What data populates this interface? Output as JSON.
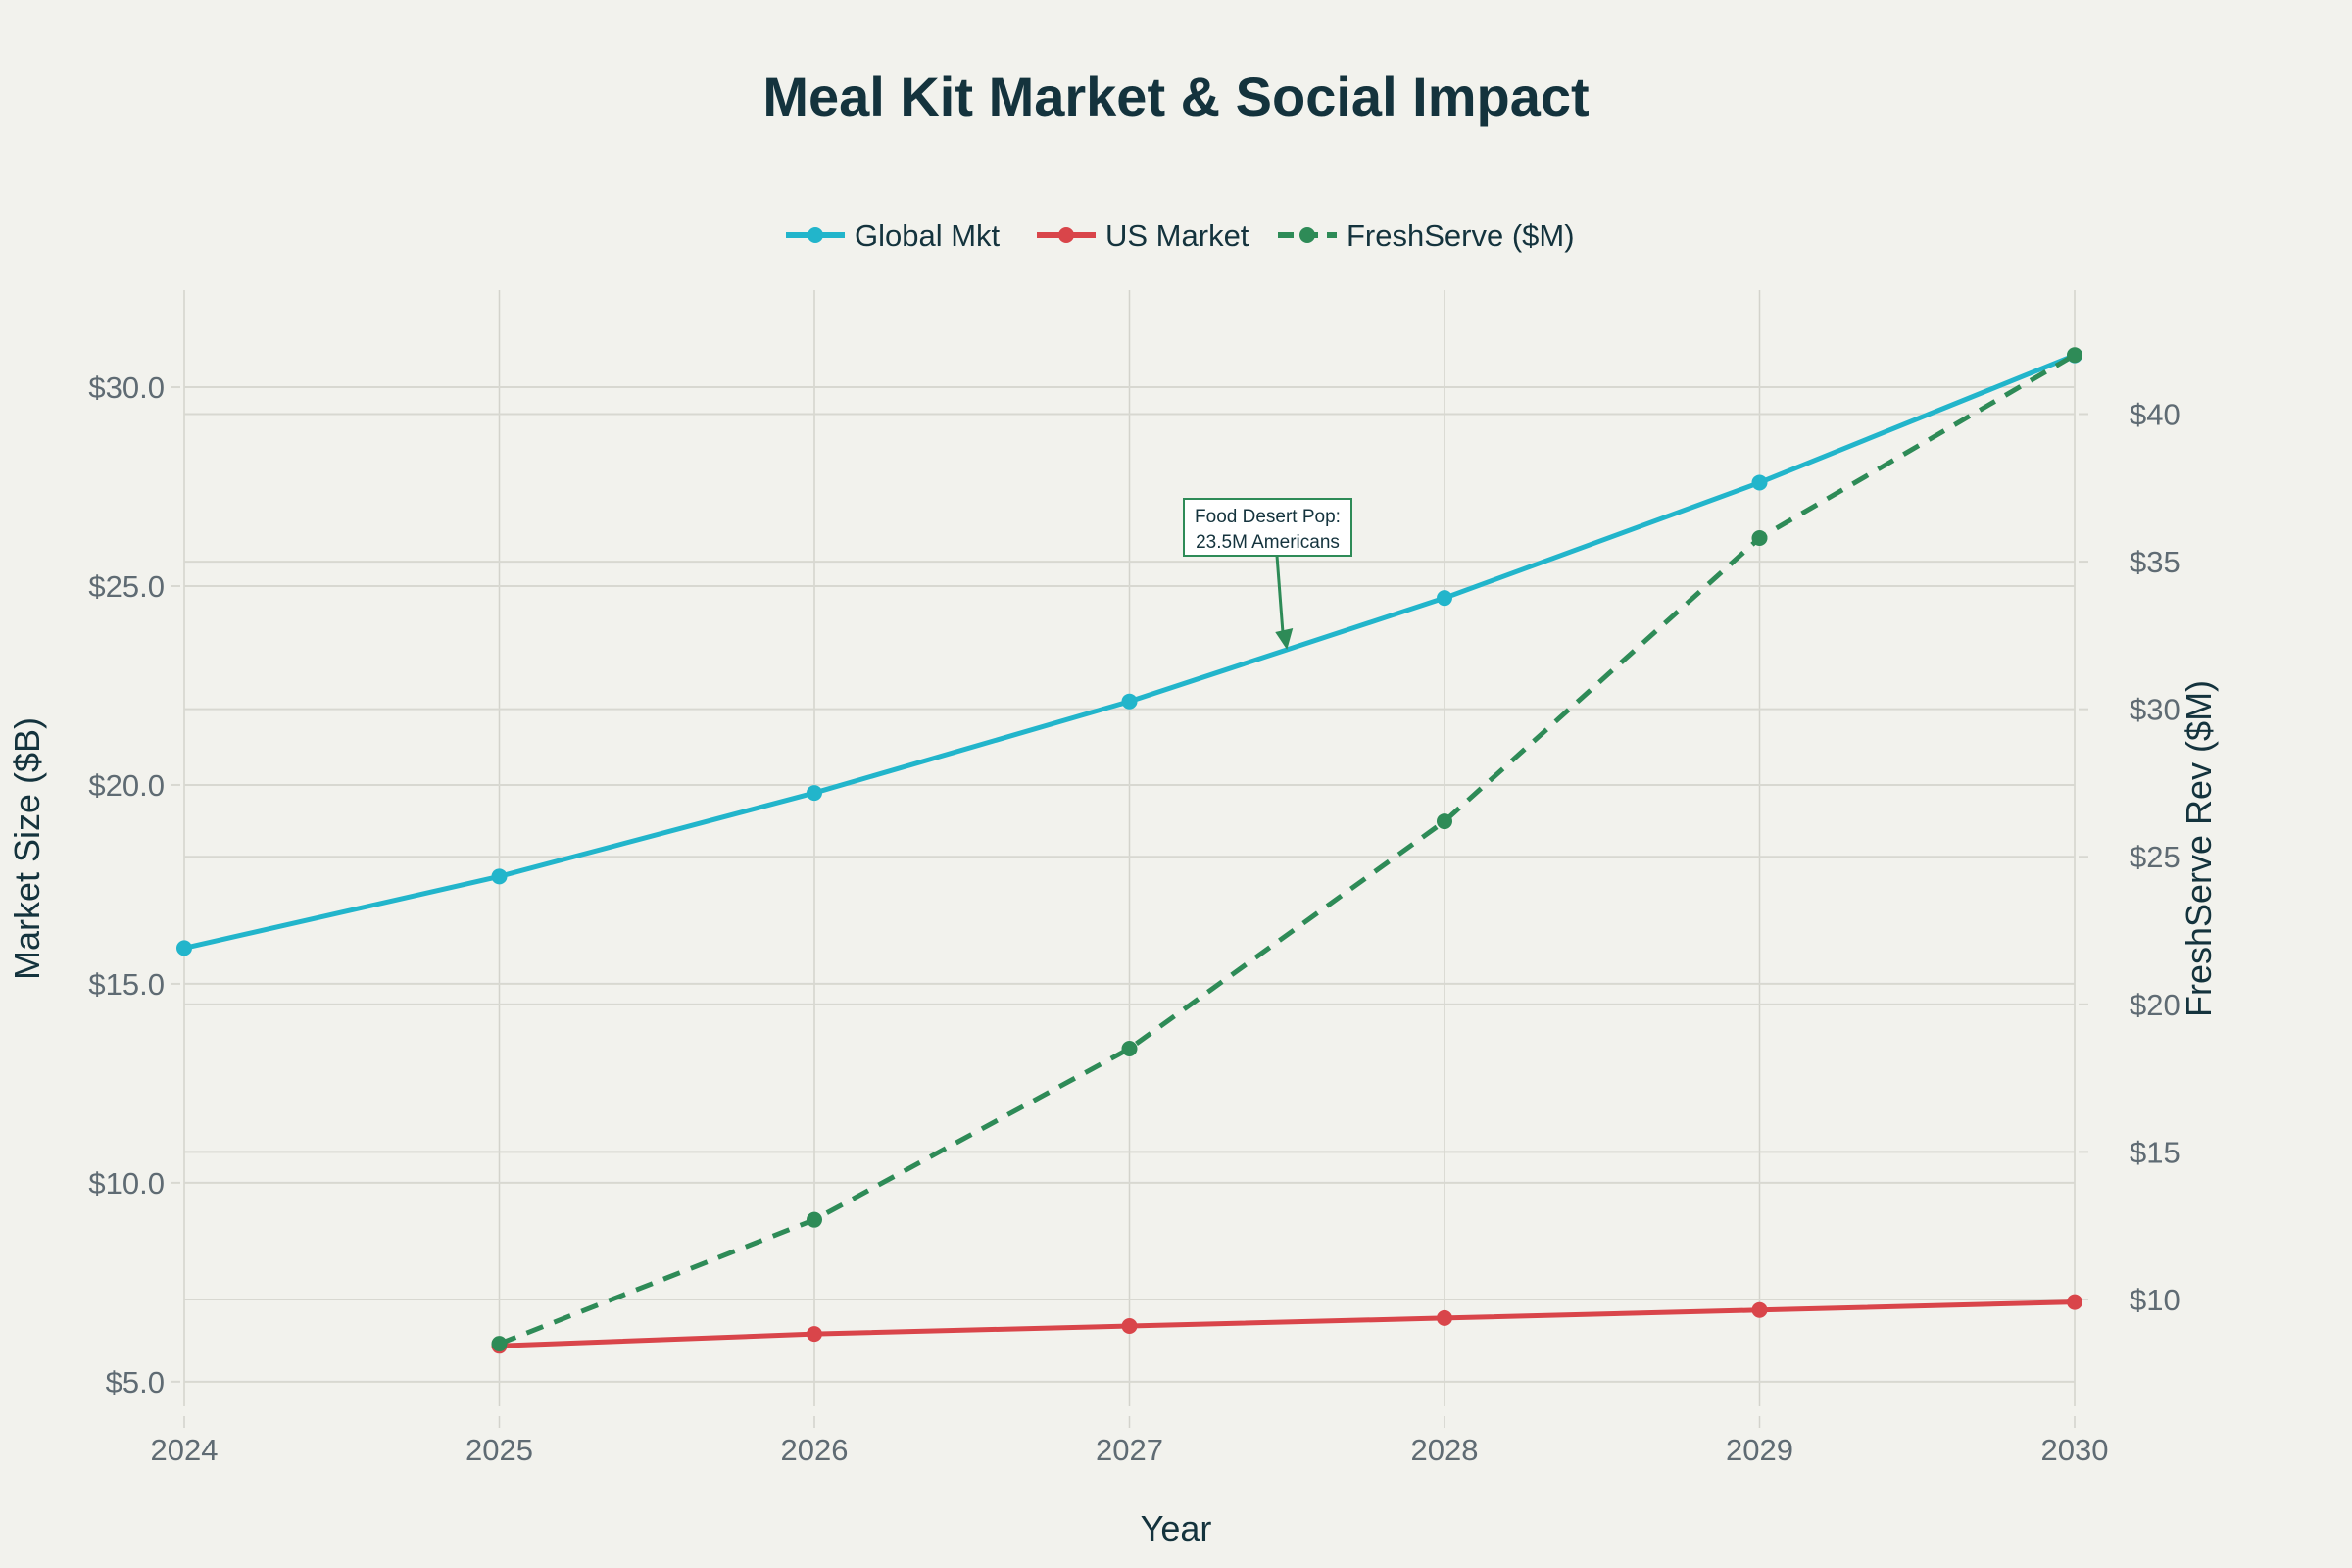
{
  "chart_data": {
    "type": "line",
    "title": "Meal Kit Market & Social Impact",
    "xlabel": "Year",
    "ylabel": "Market Size ($B)",
    "y2label": "FreshServe Rev ($M)",
    "x": [
      2024,
      2025,
      2026,
      2027,
      2028,
      2029,
      2030
    ],
    "x_ticks": [
      "2024",
      "2025",
      "2026",
      "2027",
      "2028",
      "2029",
      "2030"
    ],
    "xlim": [
      2024,
      2030
    ],
    "ylim": [
      4.38,
      32.44
    ],
    "y2lim": [
      6.38,
      44.2
    ],
    "y_ticks": [
      {
        "value": 5,
        "label": "$5.0"
      },
      {
        "value": 10,
        "label": "$10.0"
      },
      {
        "value": 15,
        "label": "$15.0"
      },
      {
        "value": 20,
        "label": "$20.0"
      },
      {
        "value": 25,
        "label": "$25.0"
      },
      {
        "value": 30,
        "label": "$30.0"
      }
    ],
    "y2_ticks": [
      {
        "value": 10,
        "label": "$10"
      },
      {
        "value": 15,
        "label": "$15"
      },
      {
        "value": 20,
        "label": "$20"
      },
      {
        "value": 25,
        "label": "$25"
      },
      {
        "value": 30,
        "label": "$30"
      },
      {
        "value": 35,
        "label": "$35"
      },
      {
        "value": 40,
        "label": "$40"
      }
    ],
    "grid": true,
    "legend_position": "top-center",
    "series": [
      {
        "name": "Global Mkt",
        "axis": "y",
        "color": "#22b5cb",
        "dash": false,
        "x": [
          2024,
          2025,
          2026,
          2027,
          2028,
          2029,
          2030
        ],
        "values": [
          15.9,
          17.7,
          19.8,
          22.1,
          24.7,
          27.6,
          30.8
        ]
      },
      {
        "name": "US Market",
        "axis": "y",
        "color": "#d9454a",
        "dash": false,
        "x": [
          2025,
          2026,
          2027,
          2028,
          2029,
          2030
        ],
        "values": [
          5.9,
          6.2,
          6.4,
          6.6,
          6.8,
          7.0
        ]
      },
      {
        "name": "FreshServe ($M)",
        "axis": "y2",
        "color": "#2e8b57",
        "dash": true,
        "x": [
          2025,
          2026,
          2027,
          2028,
          2029,
          2030
        ],
        "values": [
          8.5,
          12.7,
          18.5,
          26.2,
          35.8,
          42.0
        ]
      }
    ],
    "annotations": [
      {
        "line1": "Food Desert Pop:",
        "line2": "23.5M Americans",
        "x": 2027.5,
        "y": 23.4,
        "axis": "y",
        "border_color": "#2e8b57"
      }
    ]
  }
}
